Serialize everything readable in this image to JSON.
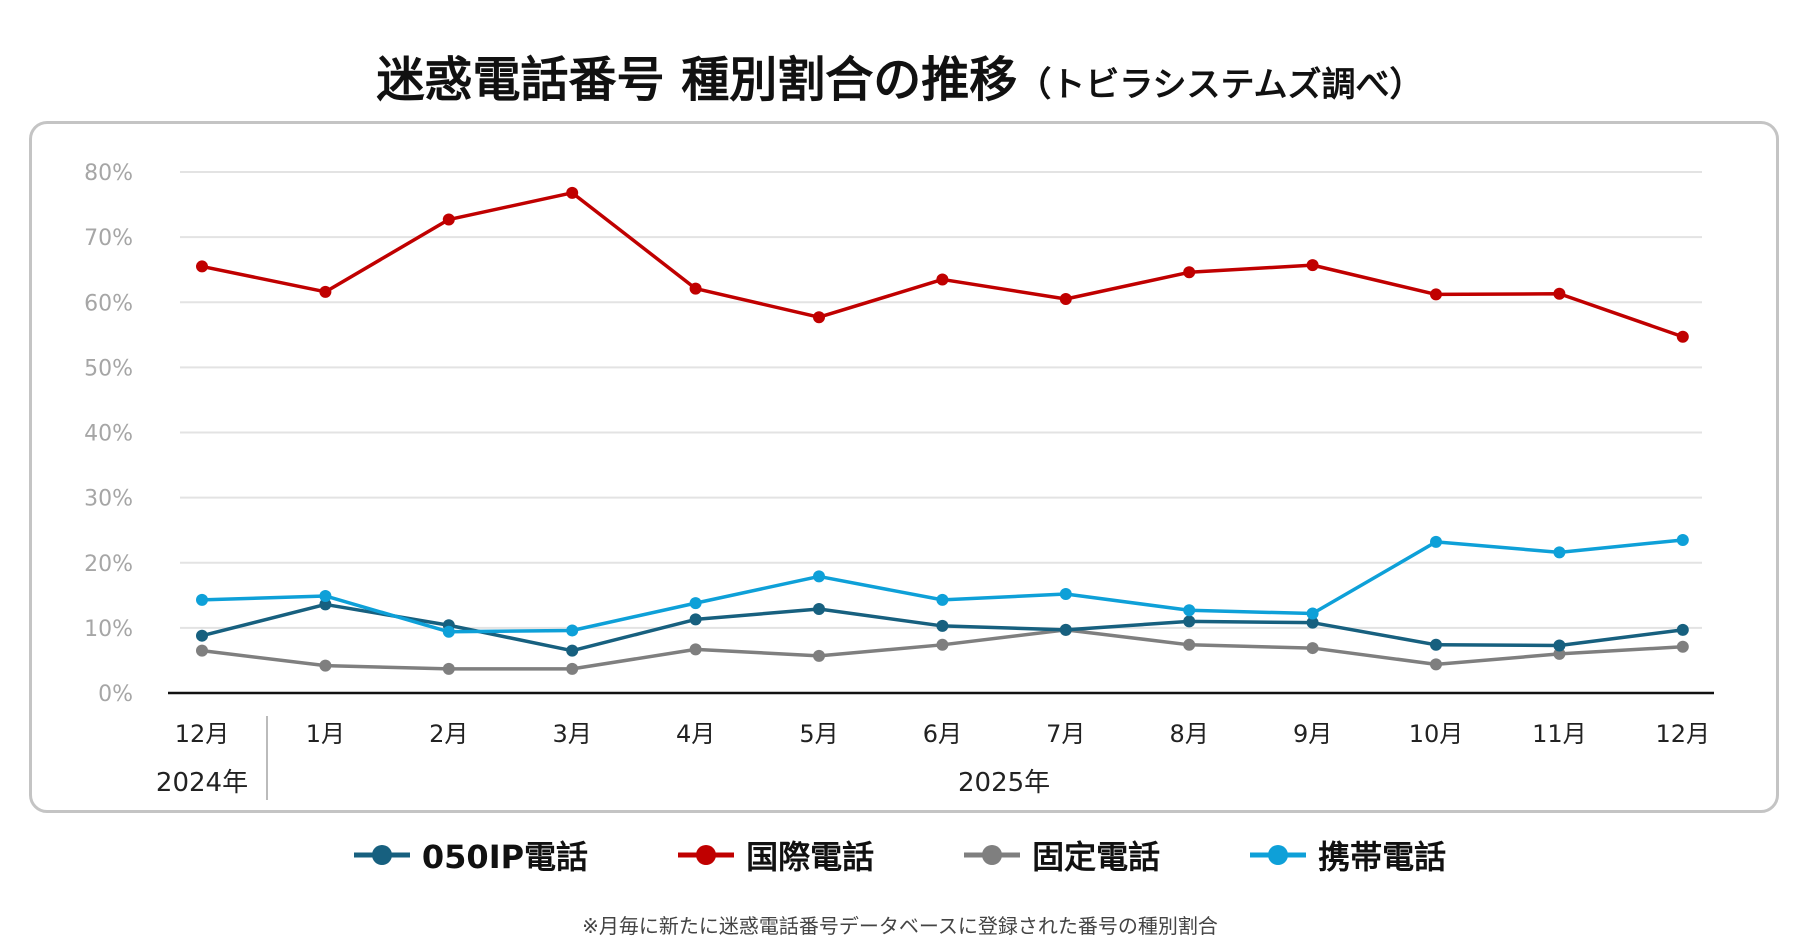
{
  "title": {
    "main": "迷惑電話番号 種別割合の推移",
    "sub": "（トビラシステムズ調べ）"
  },
  "footnote": "※月毎に新たに迷惑電話番号データベースに登録された番号の種別割合",
  "chart_data": {
    "type": "line",
    "title": "迷惑電話番号 種別割合の推移（トビラシステムズ調べ）",
    "categories": [
      "12月",
      "1月",
      "2月",
      "3月",
      "4月",
      "5月",
      "6月",
      "7月",
      "8月",
      "9月",
      "10月",
      "11月",
      "12月"
    ],
    "year_labels": [
      {
        "label": "2024年",
        "span": [
          0,
          0
        ]
      },
      {
        "label": "2025年",
        "span": [
          1,
          12
        ]
      }
    ],
    "ylim": [
      0,
      80
    ],
    "yticks": [
      "0%",
      "10%",
      "20%",
      "30%",
      "40%",
      "50%",
      "60%",
      "70%",
      "80%"
    ],
    "grid": true,
    "legend_position": "bottom",
    "series": [
      {
        "name": "050IP電話",
        "color": "#17607f",
        "values": [
          8.8,
          13.6,
          10.4,
          6.5,
          11.3,
          12.9,
          10.3,
          9.7,
          11.0,
          10.8,
          7.4,
          7.3,
          9.7
        ]
      },
      {
        "name": "国際電話",
        "color": "#c00000",
        "values": [
          65.5,
          61.6,
          72.7,
          76.8,
          62.1,
          57.7,
          63.5,
          60.5,
          64.6,
          65.7,
          61.2,
          61.3,
          54.7
        ]
      },
      {
        "name": "固定電話",
        "color": "#7f7f7f",
        "values": [
          6.5,
          4.2,
          3.7,
          3.7,
          6.7,
          5.7,
          7.4,
          9.7,
          7.4,
          6.9,
          4.4,
          6.0,
          7.1
        ]
      },
      {
        "name": "携帯電話",
        "color": "#0ea0d8",
        "values": [
          14.3,
          14.9,
          9.4,
          9.6,
          13.8,
          17.9,
          14.3,
          15.2,
          12.7,
          12.2,
          23.2,
          21.6,
          23.5
        ]
      }
    ]
  }
}
